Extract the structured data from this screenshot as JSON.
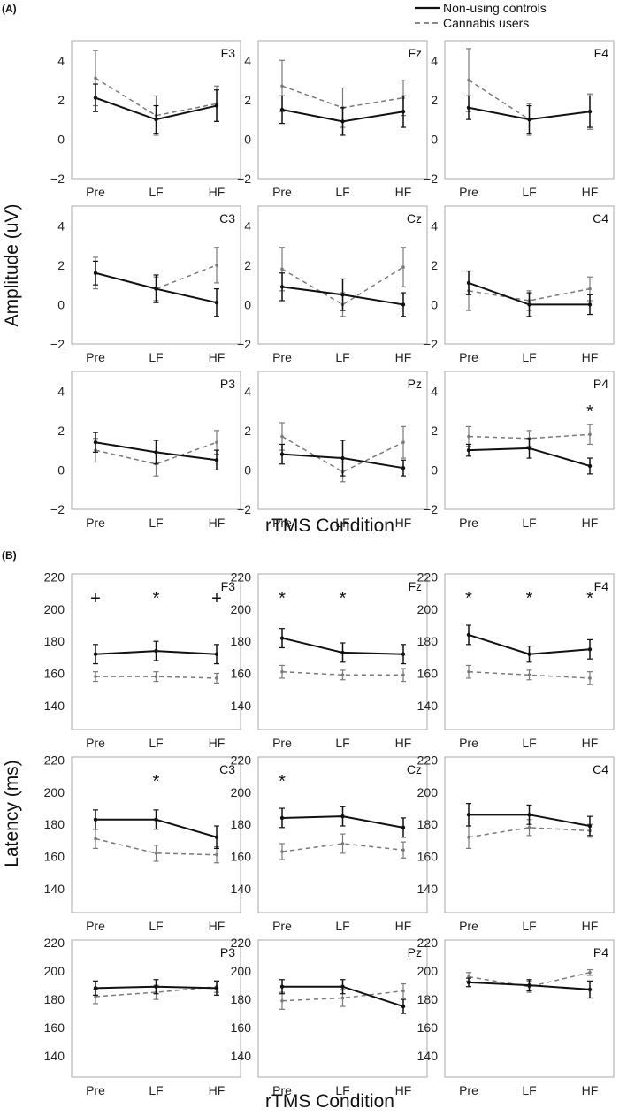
{
  "legend": {
    "controls_label": "Non-using controls",
    "users_label": "Cannabis users"
  },
  "colors": {
    "controls": "#111111",
    "users": "#7a7a7a",
    "frame": "#aaaaaa"
  },
  "chart_data": [
    {
      "panel": "(A)",
      "type": "line",
      "ylabel": "Amplitude (uV)",
      "xlabel": "rTMS Condition",
      "categories": [
        "Pre",
        "LF",
        "HF"
      ],
      "ylim": [
        -2,
        5
      ],
      "yticks": [
        -2,
        0,
        2,
        4
      ],
      "legend_position": "top-right",
      "grid": false,
      "subplots": [
        {
          "electrode": "F3",
          "controls": {
            "values": [
              2.1,
              1.0,
              1.7
            ],
            "err": [
              0.7,
              0.7,
              0.8
            ]
          },
          "users": {
            "values": [
              3.1,
              1.2,
              1.8
            ],
            "err": [
              1.4,
              1.0,
              0.9
            ]
          },
          "marks": [
            "",
            "",
            ""
          ]
        },
        {
          "electrode": "Fz",
          "controls": {
            "values": [
              1.5,
              0.9,
              1.4
            ],
            "err": [
              0.7,
              0.7,
              0.8
            ]
          },
          "users": {
            "values": [
              2.7,
              1.6,
              2.1
            ],
            "err": [
              1.3,
              1.0,
              0.9
            ]
          },
          "marks": [
            "",
            "",
            ""
          ]
        },
        {
          "electrode": "F4",
          "controls": {
            "values": [
              1.6,
              1.0,
              1.4
            ],
            "err": [
              0.6,
              0.7,
              0.8
            ]
          },
          "users": {
            "values": [
              3.0,
              1.0,
              1.4
            ],
            "err": [
              1.6,
              0.8,
              0.9
            ]
          },
          "marks": [
            "",
            "",
            ""
          ]
        },
        {
          "electrode": "C3",
          "controls": {
            "values": [
              1.6,
              0.8,
              0.1
            ],
            "err": [
              0.6,
              0.7,
              0.7
            ]
          },
          "users": {
            "values": [
              1.6,
              0.8,
              2.0
            ],
            "err": [
              0.8,
              0.6,
              0.9
            ]
          },
          "marks": [
            "",
            "",
            ""
          ]
        },
        {
          "electrode": "Cz",
          "controls": {
            "values": [
              0.9,
              0.5,
              0.0
            ],
            "err": [
              0.7,
              0.8,
              0.6
            ]
          },
          "users": {
            "values": [
              1.8,
              0.0,
              1.9
            ],
            "err": [
              1.1,
              0.6,
              1.0
            ]
          },
          "marks": [
            "",
            "",
            ""
          ]
        },
        {
          "electrode": "C4",
          "controls": {
            "values": [
              1.1,
              0.0,
              0.0
            ],
            "err": [
              0.6,
              0.6,
              0.5
            ]
          },
          "users": {
            "values": [
              0.7,
              0.2,
              0.8
            ],
            "err": [
              1.0,
              0.5,
              0.6
            ]
          },
          "marks": [
            "",
            "",
            ""
          ]
        },
        {
          "electrode": "P3",
          "controls": {
            "values": [
              1.4,
              0.9,
              0.5
            ],
            "err": [
              0.5,
              0.6,
              0.5
            ]
          },
          "users": {
            "values": [
              1.0,
              0.3,
              1.4
            ],
            "err": [
              0.6,
              0.6,
              0.6
            ]
          },
          "marks": [
            "",
            "",
            ""
          ]
        },
        {
          "electrode": "Pz",
          "controls": {
            "values": [
              0.8,
              0.6,
              0.1
            ],
            "err": [
              0.5,
              0.9,
              0.4
            ]
          },
          "users": {
            "values": [
              1.7,
              -0.1,
              1.4
            ],
            "err": [
              0.7,
              0.5,
              0.8
            ]
          },
          "marks": [
            "",
            "",
            ""
          ]
        },
        {
          "electrode": "P4",
          "controls": {
            "values": [
              1.0,
              1.1,
              0.2
            ],
            "err": [
              0.3,
              0.5,
              0.4
            ]
          },
          "users": {
            "values": [
              1.7,
              1.6,
              1.8
            ],
            "err": [
              0.5,
              0.4,
              0.5
            ]
          },
          "marks": [
            "",
            "",
            "*"
          ]
        }
      ]
    },
    {
      "panel": "(B)",
      "type": "line",
      "ylabel": "Latency (ms)",
      "xlabel": "rTMS Condition",
      "categories": [
        "Pre",
        "LF",
        "HF"
      ],
      "ylim": [
        125,
        222
      ],
      "yticks": [
        140,
        160,
        180,
        200,
        220
      ],
      "grid": false,
      "subplots": [
        {
          "electrode": "F3",
          "controls": {
            "values": [
              172,
              174,
              172
            ],
            "err": [
              6,
              6,
              6
            ]
          },
          "users": {
            "values": [
              158,
              158,
              157
            ],
            "err": [
              3,
              3,
              3
            ]
          },
          "marks": [
            "+",
            "*",
            "+"
          ]
        },
        {
          "electrode": "Fz",
          "controls": {
            "values": [
              182,
              173,
              172
            ],
            "err": [
              6,
              6,
              6
            ]
          },
          "users": {
            "values": [
              161,
              159,
              159
            ],
            "err": [
              4,
              3,
              4
            ]
          },
          "marks": [
            "*",
            "*",
            ""
          ]
        },
        {
          "electrode": "F4",
          "controls": {
            "values": [
              184,
              172,
              175
            ],
            "err": [
              6,
              5,
              6
            ]
          },
          "users": {
            "values": [
              161,
              159,
              157
            ],
            "err": [
              4,
              3,
              4
            ]
          },
          "marks": [
            "*",
            "*",
            "*"
          ]
        },
        {
          "electrode": "C3",
          "controls": {
            "values": [
              183,
              183,
              172
            ],
            "err": [
              6,
              6,
              7
            ]
          },
          "users": {
            "values": [
              171,
              162,
              161
            ],
            "err": [
              6,
              5,
              5
            ]
          },
          "marks": [
            "",
            "*",
            ""
          ]
        },
        {
          "electrode": "Cz",
          "controls": {
            "values": [
              184,
              185,
              178
            ],
            "err": [
              6,
              6,
              6
            ]
          },
          "users": {
            "values": [
              163,
              168,
              164
            ],
            "err": [
              5,
              6,
              5
            ]
          },
          "marks": [
            "*",
            "",
            ""
          ]
        },
        {
          "electrode": "C4",
          "controls": {
            "values": [
              186,
              186,
              179
            ],
            "err": [
              7,
              6,
              6
            ]
          },
          "users": {
            "values": [
              172,
              178,
              176
            ],
            "err": [
              7,
              5,
              4
            ]
          },
          "marks": [
            "",
            "",
            ""
          ]
        },
        {
          "electrode": "P3",
          "controls": {
            "values": [
              188,
              189,
              188
            ],
            "err": [
              5,
              5,
              5
            ]
          },
          "users": {
            "values": [
              182,
              185,
              189
            ],
            "err": [
              5,
              5,
              4
            ]
          },
          "marks": [
            "",
            "",
            ""
          ]
        },
        {
          "electrode": "Pz",
          "controls": {
            "values": [
              189,
              189,
              175
            ],
            "err": [
              5,
              5,
              5
            ]
          },
          "users": {
            "values": [
              179,
              181,
              186
            ],
            "err": [
              6,
              6,
              5
            ]
          },
          "marks": [
            "",
            "",
            ""
          ]
        },
        {
          "electrode": "P4",
          "controls": {
            "values": [
              192,
              190,
              187
            ],
            "err": [
              3,
              4,
              6
            ]
          },
          "users": {
            "values": [
              196,
              189,
              199
            ],
            "err": [
              3,
              4,
              2
            ]
          },
          "marks": [
            "",
            "",
            ""
          ]
        }
      ]
    }
  ]
}
